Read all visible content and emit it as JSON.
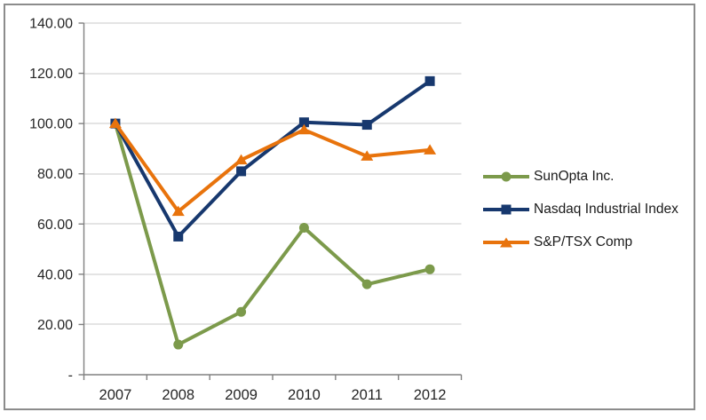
{
  "chart_data": {
    "type": "line",
    "title": "",
    "xlabel": "",
    "ylabel": "",
    "categories": [
      "2007",
      "2008",
      "2009",
      "2010",
      "2011",
      "2012"
    ],
    "series": [
      {
        "name": "SunOpta Inc.",
        "marker": "circle",
        "color": "#7C9A4B",
        "values": [
          100,
          12,
          25,
          58.5,
          36,
          42
        ]
      },
      {
        "name": "Nasdaq Industrial Index",
        "marker": "square",
        "color": "#17386E",
        "values": [
          100,
          55,
          81,
          100.5,
          99.5,
          116.9
        ]
      },
      {
        "name": "S&P/TSX Comp",
        "marker": "triangle",
        "color": "#E8730C",
        "values": [
          100,
          65,
          85.5,
          97.5,
          87,
          89.5
        ]
      }
    ],
    "ylim": [
      0,
      140
    ],
    "ytick_interval": 20,
    "ytick_labels": [
      "-",
      "20.00",
      "40.00",
      "60.00",
      "80.00",
      "100.00",
      "120.00",
      "140.00"
    ],
    "grid": true,
    "legend_position": "right",
    "colors": {
      "grid": "#c9c9c9",
      "axis": "#808080",
      "text": "#262626",
      "frame_border": "#8c8c8c",
      "background": "#ffffff"
    }
  }
}
